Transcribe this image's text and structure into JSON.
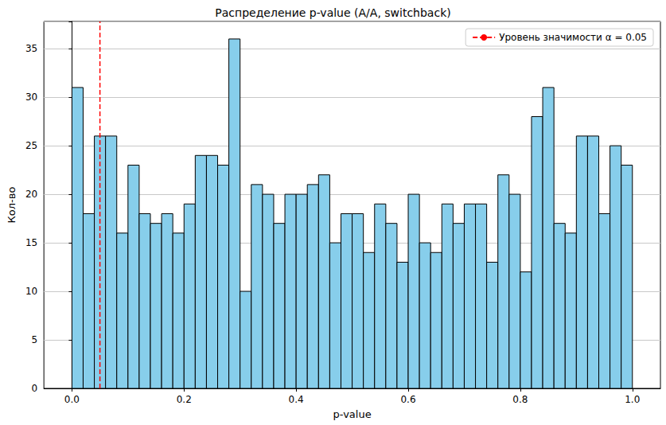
{
  "chart_data": {
    "type": "histogram",
    "title": "Распределение p-value (A/A, switchback)",
    "x_label": "p-value",
    "y_label": "Кол-во",
    "bins": [
      0,
      0.02,
      0.04,
      0.06,
      0.08,
      0.1,
      0.12,
      0.14,
      0.16,
      0.18,
      0.2,
      0.22,
      0.24,
      0.26,
      0.28,
      0.3,
      0.32,
      0.34,
      0.36,
      0.38,
      0.4,
      0.42,
      0.44,
      0.46,
      0.48,
      0.5,
      0.52,
      0.54,
      0.56,
      0.58,
      0.6,
      0.62,
      0.64,
      0.66,
      0.68,
      0.7,
      0.72,
      0.74,
      0.76,
      0.78,
      0.8,
      0.82,
      0.84,
      0.86,
      0.88,
      0.9,
      0.92,
      0.94,
      0.96,
      0.98,
      1
    ],
    "values": [
      31,
      18,
      26,
      26,
      16,
      23,
      18,
      17,
      18,
      16,
      19,
      24,
      24,
      23,
      36,
      10,
      21,
      20,
      17,
      20,
      20,
      21,
      22,
      15,
      18,
      18,
      14,
      19,
      17,
      13,
      20,
      15,
      14,
      19,
      17,
      19,
      19,
      13,
      22,
      20,
      12,
      28,
      31,
      17,
      16,
      26,
      26,
      18,
      25,
      23
    ],
    "color": "#87ceeb",
    "xlim": [
      -0.05,
      1.05
    ],
    "xticks": [
      {
        "value": 0,
        "label": "0.0"
      },
      0.2,
      0.4,
      0.6,
      0.8,
      {
        "value": 1,
        "label": "1.0"
      }
    ],
    "ylim": [
      0,
      37.8
    ],
    "yticks": [
      0,
      5,
      10,
      15,
      20,
      25,
      30,
      35
    ],
    "grid": "y",
    "legend": "upper right",
    "vlines": [
      {
        "x": 0.05,
        "name": "Уровень значимости α = 0.05",
        "color": "#ff0000",
        "line_style": "dashed"
      }
    ]
  }
}
